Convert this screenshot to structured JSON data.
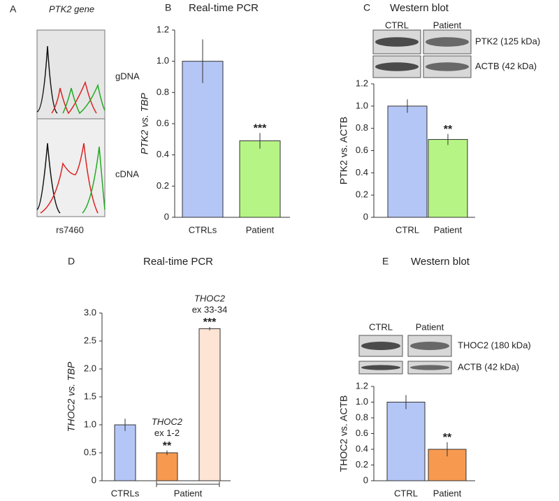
{
  "chart_data": [
    {
      "type": "chromatogram",
      "panel": "A",
      "title": "PTK2 gene",
      "labels": [
        "gDNA",
        "cDNA"
      ],
      "xlabel": "rs7460"
    },
    {
      "type": "bar",
      "panel": "B",
      "title": "Real-time PCR",
      "ylabel": "PTK2 vs. TBP",
      "categories": [
        "CTRLs",
        "Patient"
      ],
      "values": [
        1.0,
        0.49
      ],
      "errors": [
        0.14,
        0.05
      ],
      "colors": [
        "#b4c6f6",
        "#b6f585"
      ],
      "annotations": [
        null,
        [
          "***"
        ]
      ],
      "ylim": [
        0,
        1.2
      ],
      "yticks": [
        0,
        0.2,
        0.4,
        0.6,
        0.8,
        {
          "value": 1,
          "label": "1.0"
        },
        1.2
      ]
    },
    {
      "type": "bar",
      "panel": "C",
      "title": "Western blot",
      "ylabel": "PTK2 vs. ACTB",
      "blot": {
        "lanes": [
          "CTRL",
          "Patient"
        ],
        "rows": [
          "PTK2 (125 kDa)",
          "ACTB (42 kDa)"
        ]
      },
      "categories": [
        "CTRL",
        "Patient"
      ],
      "values": [
        1.0,
        0.7
      ],
      "errors": [
        0.06,
        0.05
      ],
      "colors": [
        "#b4c6f6",
        "#b6f585"
      ],
      "annotations": [
        null,
        [
          "**"
        ]
      ],
      "ylim": [
        0,
        1.2
      ],
      "yticks": [
        0,
        0.2,
        0.4,
        0.6,
        0.8,
        {
          "value": 1,
          "label": "1.0"
        },
        1.2
      ]
    },
    {
      "type": "bar",
      "panel": "D",
      "title": "Real-time PCR",
      "ylabel": "THOC2 vs. TBP",
      "categories": [
        "CTRLs",
        null,
        null
      ],
      "group_label": "Patient",
      "values": [
        1.0,
        0.5,
        2.72
      ],
      "errors": [
        0.11,
        0.04,
        0.03
      ],
      "colors": [
        "#b4c6f6",
        "#f79a4f",
        "#fde4d4"
      ],
      "annotations": [
        null,
        [
          "THOC2",
          "ex 1-2",
          "**"
        ],
        [
          "THOC2",
          "ex 33-34",
          "***"
        ]
      ],
      "ylim": [
        0,
        3
      ],
      "yticks": [
        0,
        0.5,
        {
          "value": 1,
          "label": "1.0"
        },
        1.5,
        {
          "value": 2,
          "label": "2.0"
        },
        2.5,
        {
          "value": 3,
          "label": "3.0"
        }
      ]
    },
    {
      "type": "bar",
      "panel": "E",
      "title": "Western blot",
      "ylabel": "THOC2 vs. ACTB",
      "blot": {
        "lanes": [
          "CTRL",
          "Patient"
        ],
        "rows": [
          "THOC2 (180 kDa)",
          "ACTB (42 kDa)"
        ]
      },
      "categories": [
        "CTRL",
        "Patient"
      ],
      "values": [
        1.0,
        0.4
      ],
      "errors": [
        0.09,
        0.09
      ],
      "colors": [
        "#b4c6f6",
        "#f79a4f"
      ],
      "annotations": [
        null,
        [
          "**"
        ]
      ],
      "ylim": [
        0,
        1.2
      ],
      "yticks": [
        0,
        0.2,
        0.4,
        0.6,
        0.8,
        {
          "value": 1,
          "label": "1.0"
        },
        1.2
      ]
    }
  ]
}
